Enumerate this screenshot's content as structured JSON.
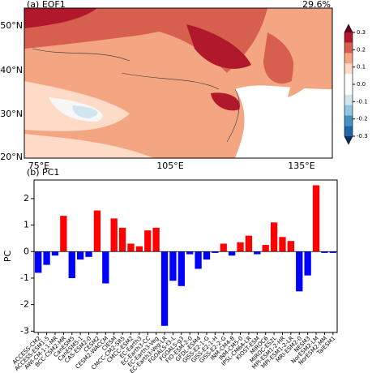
{
  "map": {
    "title": "(a) EOF1",
    "variance": "29.6%",
    "lat_labels": [
      "50°N",
      "40°N",
      "30°N",
      "20°N"
    ],
    "lon_labels": [
      "75°E",
      "105°E",
      "135°E"
    ],
    "colorbar_ticks": [
      0.3,
      0.2,
      0.1,
      {
        "value": 0,
        "label": "0.0"
      },
      -0.1,
      -0.2,
      -0.3
    ]
  },
  "chart_data": {
    "type": "bar",
    "title": "(b) PC1",
    "y_label": "PC",
    "categories": [
      "ACCESS-CM2",
      "ACCESS-ESM1-5",
      "AWI-CM-1-1-MR",
      "BCC-CSM2-MR",
      "CanESM5",
      "CanESM5-1",
      "CAS-ESM2-0",
      "CESM2",
      "CESM2-WACCM",
      "CIESM",
      "CMCC-CM2-SR5",
      "CMCC-ESM2",
      "EC-Earth3",
      "EC-Earth3-CC",
      "EC-Earth3-Veg",
      "EC-Earth3-Veg-LR",
      "FGOALS-f3-L",
      "FGOALS-g3",
      "FIO-ESM-2-0",
      "GFDL-ESM4",
      "GISS-E2-1-G",
      "GISS-E2-1-H",
      "GISS-E2-2-G",
      "INM-CM4-8",
      "INM-CM5-0",
      "IPSL-CM6A-LR",
      "KIOST-ESM",
      "MIROC6",
      "MIROC-ES2L",
      "MPI-ESM1-2-HR",
      "MPI-ESM1-2-LR",
      "MRI-ESM2-0",
      "NESM3",
      "NorESM2-LM",
      "NorESM2-MM",
      "TaiESM1"
    ],
    "values": [
      -0.8,
      -0.5,
      -0.15,
      1.35,
      -1.0,
      -0.3,
      -0.2,
      1.55,
      -1.2,
      1.25,
      0.9,
      0.3,
      0.2,
      0.8,
      0.9,
      -2.8,
      -1.1,
      -1.3,
      -0.1,
      -0.65,
      -0.3,
      -0.05,
      0.3,
      -0.15,
      0.35,
      0.6,
      -0.1,
      0.25,
      1.1,
      0.55,
      0.4,
      -1.5,
      -0.9,
      2.5,
      -0.05,
      -0.05
    ],
    "positive_color": "#ff0000",
    "negative_color": "#0000ff",
    "ylim": [
      -3.05,
      2.7
    ],
    "yticks": [
      -3,
      -2,
      -1,
      0,
      1,
      2
    ]
  }
}
